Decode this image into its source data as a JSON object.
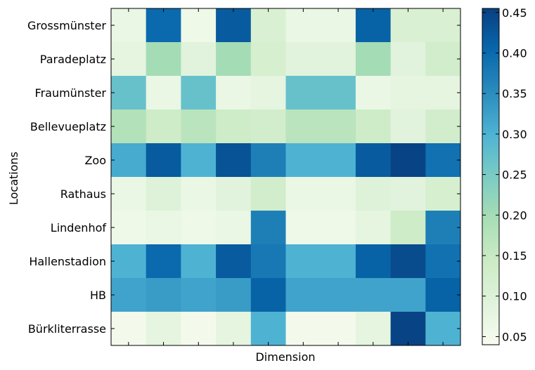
{
  "chart_data": {
    "type": "heatmap",
    "title": "",
    "xlabel": "Dimension",
    "ylabel": "Locations",
    "rows": [
      "Grossmünster",
      "Paradeplatz",
      "Fraumünster",
      "Bellevueplatz",
      "Zoo",
      "Rathaus",
      "Lindenhof",
      "Hallenstadion",
      "HB",
      "Bürkliterrasse"
    ],
    "columns": 10,
    "values": [
      [
        0.07,
        0.4,
        0.06,
        0.42,
        0.11,
        0.07,
        0.07,
        0.41,
        0.11,
        0.11
      ],
      [
        0.08,
        0.2,
        0.09,
        0.2,
        0.12,
        0.09,
        0.09,
        0.2,
        0.09,
        0.13
      ],
      [
        0.27,
        0.07,
        0.27,
        0.07,
        0.08,
        0.27,
        0.27,
        0.07,
        0.08,
        0.08
      ],
      [
        0.18,
        0.14,
        0.17,
        0.14,
        0.13,
        0.17,
        0.17,
        0.14,
        0.09,
        0.13
      ],
      [
        0.31,
        0.42,
        0.3,
        0.43,
        0.37,
        0.3,
        0.3,
        0.42,
        0.45,
        0.39
      ],
      [
        0.07,
        0.1,
        0.07,
        0.09,
        0.13,
        0.07,
        0.07,
        0.1,
        0.09,
        0.12
      ],
      [
        0.06,
        0.07,
        0.06,
        0.07,
        0.37,
        0.06,
        0.06,
        0.08,
        0.14,
        0.37
      ],
      [
        0.3,
        0.4,
        0.3,
        0.42,
        0.38,
        0.3,
        0.3,
        0.41,
        0.44,
        0.39
      ],
      [
        0.32,
        0.33,
        0.32,
        0.33,
        0.41,
        0.32,
        0.32,
        0.32,
        0.32,
        0.41
      ],
      [
        0.05,
        0.08,
        0.05,
        0.08,
        0.3,
        0.05,
        0.05,
        0.08,
        0.45,
        0.3
      ]
    ],
    "color_range": [
      0.04,
      0.455
    ],
    "colorbar_ticks": [
      "0.05",
      "0.10",
      "0.15",
      "0.20",
      "0.25",
      "0.30",
      "0.35",
      "0.40",
      "0.45"
    ],
    "colormap": "GnBu",
    "grid": false,
    "legend": "colorbar-right"
  }
}
